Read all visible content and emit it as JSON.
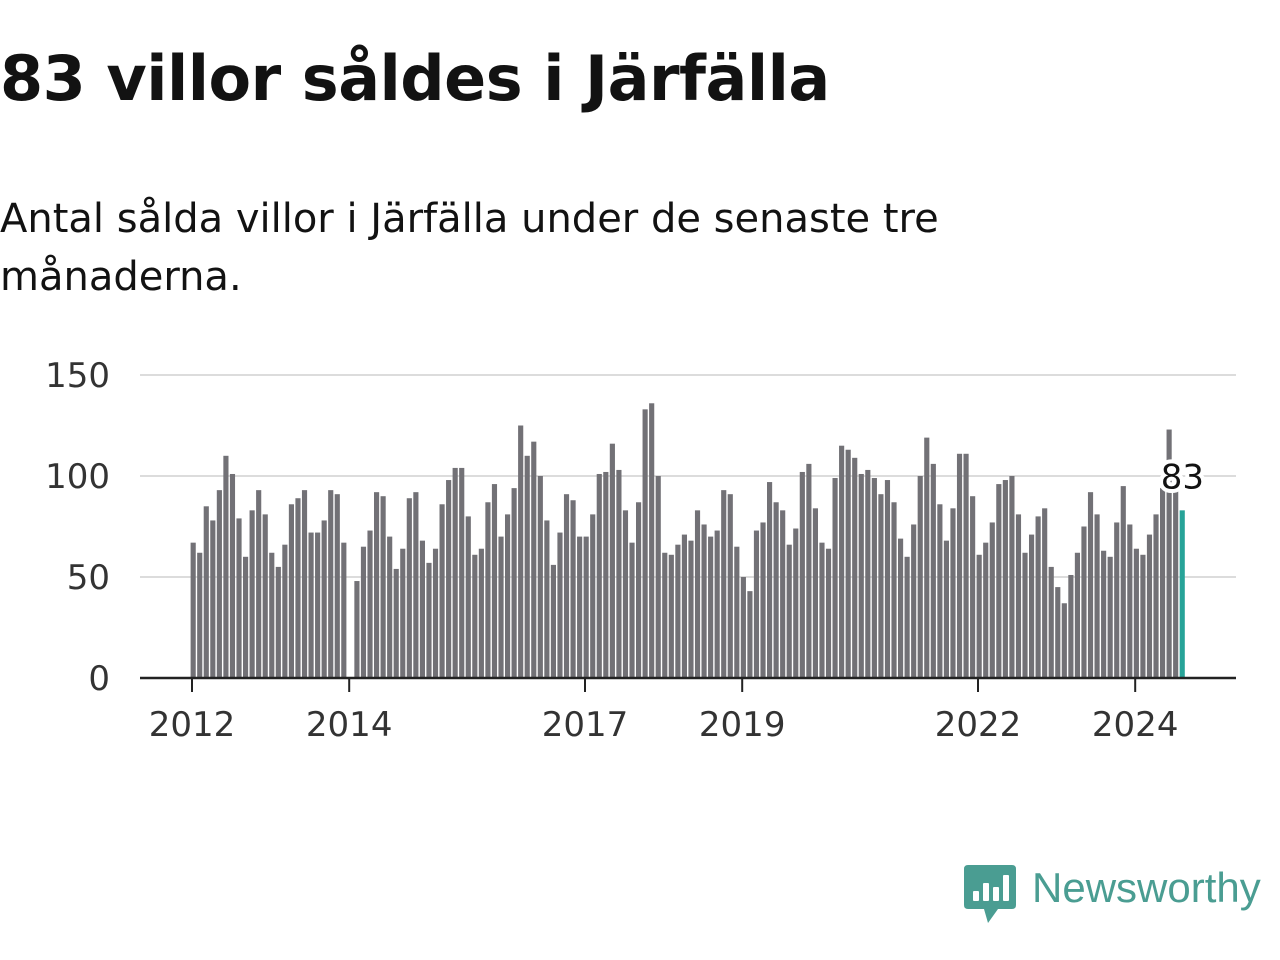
{
  "headline": "83 villor såldes i Järfälla",
  "subtitle": "Antal sålda villor i Järfälla under de senaste tre månaderna.",
  "brand": {
    "name": "Newsworthy",
    "color": "#4a9d92",
    "icon": "newsworthy-logo-icon"
  },
  "colors": {
    "bar": "#727176",
    "highlight": "#27a398",
    "grid": "#dcdcdc",
    "axis": "#222222"
  },
  "chart_data": {
    "type": "bar",
    "title": "83 villor såldes i Järfälla",
    "xlabel": "",
    "ylabel": "",
    "ylim": [
      0,
      150
    ],
    "yticks": [
      0,
      50,
      100,
      150
    ],
    "grid": true,
    "x_start": "2012-01",
    "x_ticks": [
      "2012",
      "2014",
      "2017",
      "2019",
      "2022",
      "2024"
    ],
    "highlight_label": "83",
    "values": [
      67,
      62,
      85,
      78,
      93,
      110,
      101,
      79,
      60,
      83,
      93,
      81,
      62,
      55,
      66,
      86,
      89,
      93,
      72,
      72,
      78,
      93,
      91,
      67,
      null,
      48,
      65,
      73,
      92,
      90,
      70,
      54,
      64,
      89,
      92,
      68,
      57,
      64,
      86,
      98,
      104,
      104,
      80,
      61,
      64,
      87,
      96,
      70,
      81,
      94,
      125,
      110,
      117,
      100,
      78,
      56,
      72,
      91,
      88,
      70,
      70,
      81,
      101,
      102,
      116,
      103,
      83,
      67,
      87,
      133,
      136,
      100,
      62,
      61,
      66,
      71,
      68,
      83,
      76,
      70,
      73,
      93,
      91,
      65,
      50,
      43,
      73,
      77,
      97,
      87,
      83,
      66,
      74,
      102,
      106,
      84,
      67,
      64,
      99,
      115,
      113,
      109,
      101,
      103,
      99,
      91,
      98,
      87,
      69,
      60,
      76,
      100,
      119,
      106,
      86,
      68,
      84,
      111,
      111,
      90,
      61,
      67,
      77,
      96,
      98,
      100,
      81,
      62,
      71,
      80,
      84,
      55,
      45,
      37,
      51,
      62,
      75,
      92,
      81,
      63,
      60,
      77,
      95,
      76,
      64,
      61,
      71,
      81,
      94,
      123,
      98,
      83
    ]
  }
}
